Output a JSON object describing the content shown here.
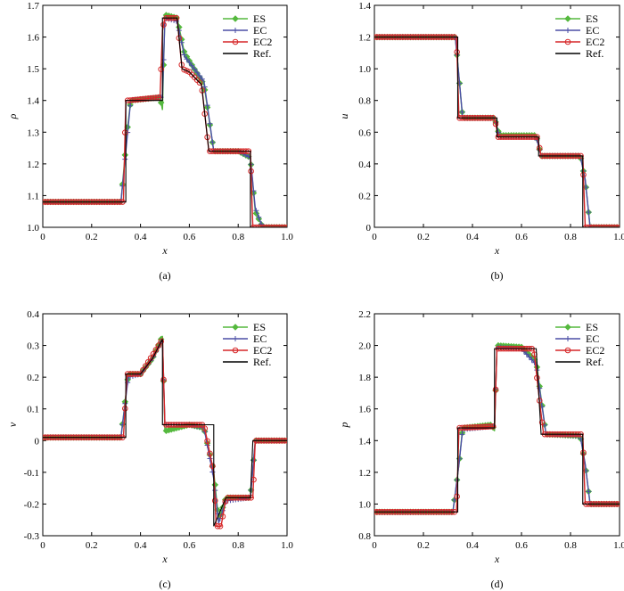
{
  "figure": {
    "legend": [
      {
        "label": "ES",
        "color": "#55b93e",
        "marker": "diamond"
      },
      {
        "label": "EC",
        "color": "#4b4fa6",
        "marker": "plus"
      },
      {
        "label": "EC2",
        "color": "#d62728",
        "marker": "circle"
      },
      {
        "label": "Ref.",
        "color": "#000000",
        "marker": "none"
      }
    ]
  },
  "chart_data": [
    {
      "type": "line",
      "caption": "(a)",
      "xlabel": "x",
      "ylabel": "ρ",
      "xlim": [
        0,
        1.0
      ],
      "ylim": [
        1.0,
        1.7
      ],
      "xticks": [
        "0",
        "0.2",
        "0.4",
        "0.6",
        "0.8",
        "1.0"
      ],
      "yticks": [
        "1.0",
        "1.1",
        "1.2",
        "1.3",
        "1.4",
        "1.5",
        "1.6",
        "1.7"
      ],
      "series": [
        {
          "name": "ES",
          "x": [
            0,
            0.32,
            0.345,
            0.36,
            0.48,
            0.49,
            0.5,
            0.55,
            0.58,
            0.62,
            0.66,
            0.7,
            0.8,
            0.85,
            0.87,
            0.9,
            1.0
          ],
          "y": [
            1.08,
            1.08,
            1.3,
            1.4,
            1.41,
            1.37,
            1.67,
            1.66,
            1.55,
            1.5,
            1.45,
            1.24,
            1.24,
            1.22,
            1.05,
            1.0,
            1.0
          ]
        },
        {
          "name": "EC",
          "x": [
            0,
            0.32,
            0.345,
            0.36,
            0.48,
            0.49,
            0.5,
            0.55,
            0.58,
            0.62,
            0.66,
            0.7,
            0.8,
            0.85,
            0.87,
            0.9,
            1.0
          ],
          "y": [
            1.08,
            1.08,
            1.28,
            1.4,
            1.41,
            1.41,
            1.66,
            1.65,
            1.54,
            1.5,
            1.46,
            1.24,
            1.24,
            1.22,
            1.06,
            1.0,
            1.0
          ]
        },
        {
          "name": "EC2",
          "x": [
            0,
            0.33,
            0.34,
            0.35,
            0.48,
            0.49,
            0.5,
            0.55,
            0.57,
            0.6,
            0.65,
            0.68,
            0.85,
            0.86,
            0.9,
            1.0
          ],
          "y": [
            1.08,
            1.08,
            1.4,
            1.4,
            1.41,
            1.62,
            1.66,
            1.66,
            1.5,
            1.49,
            1.45,
            1.24,
            1.24,
            1.0,
            1.0,
            1.0
          ]
        },
        {
          "name": "Ref.",
          "x": [
            0,
            0.34,
            0.34,
            0.49,
            0.49,
            0.55,
            0.57,
            0.6,
            0.65,
            0.68,
            0.85,
            0.85,
            1.0
          ],
          "y": [
            1.08,
            1.08,
            1.4,
            1.4,
            1.66,
            1.66,
            1.5,
            1.49,
            1.45,
            1.24,
            1.24,
            1.0,
            1.0
          ]
        }
      ]
    },
    {
      "type": "line",
      "caption": "(b)",
      "xlabel": "x",
      "ylabel": "u",
      "xlim": [
        0,
        1.0
      ],
      "ylim": [
        0,
        1.4
      ],
      "xticks": [
        "0",
        "0.2",
        "0.4",
        "0.6",
        "0.8",
        "1.0"
      ],
      "yticks": [
        "0",
        "0.2",
        "0.4",
        "0.6",
        "0.8",
        "1.0",
        "1.2",
        "1.4"
      ],
      "series": [
        {
          "name": "ES",
          "x": [
            0,
            0.33,
            0.345,
            0.36,
            0.49,
            0.51,
            0.66,
            0.68,
            0.84,
            0.86,
            0.88,
            1.0
          ],
          "y": [
            1.2,
            1.2,
            0.95,
            0.69,
            0.69,
            0.58,
            0.58,
            0.45,
            0.45,
            0.3,
            0.0,
            0.0
          ]
        },
        {
          "name": "EC",
          "x": [
            0,
            0.33,
            0.345,
            0.36,
            0.49,
            0.51,
            0.66,
            0.68,
            0.84,
            0.86,
            0.88,
            1.0
          ],
          "y": [
            1.2,
            1.2,
            0.95,
            0.69,
            0.69,
            0.57,
            0.57,
            0.45,
            0.45,
            0.3,
            0.0,
            0.0
          ]
        },
        {
          "name": "EC2",
          "x": [
            0,
            0.335,
            0.345,
            0.49,
            0.505,
            0.665,
            0.68,
            0.85,
            0.86,
            1.0
          ],
          "y": [
            1.2,
            1.2,
            0.69,
            0.69,
            0.57,
            0.57,
            0.45,
            0.45,
            0.0,
            0.0
          ]
        },
        {
          "name": "Ref.",
          "x": [
            0,
            0.34,
            0.34,
            0.5,
            0.5,
            0.67,
            0.67,
            0.85,
            0.85,
            1.0
          ],
          "y": [
            1.2,
            1.2,
            0.69,
            0.69,
            0.57,
            0.57,
            0.45,
            0.45,
            0.0,
            0.0
          ]
        }
      ]
    },
    {
      "type": "line",
      "caption": "(c)",
      "xlabel": "x",
      "ylabel": "v",
      "xlim": [
        0,
        1.0
      ],
      "ylim": [
        -0.3,
        0.4
      ],
      "xticks": [
        "0",
        "0.2",
        "0.4",
        "0.6",
        "0.8",
        "1.0"
      ],
      "yticks": [
        "-0.3",
        "-0.2",
        "-0.1",
        "0",
        "0.1",
        "0.2",
        "0.3",
        "0.4"
      ],
      "series": [
        {
          "name": "ES",
          "x": [
            0,
            0.32,
            0.35,
            0.4,
            0.45,
            0.49,
            0.5,
            0.6,
            0.66,
            0.7,
            0.72,
            0.75,
            0.85,
            0.87,
            1.0
          ],
          "y": [
            0.01,
            0.01,
            0.21,
            0.21,
            0.26,
            0.33,
            0.03,
            0.05,
            0.04,
            -0.1,
            -0.25,
            -0.18,
            -0.18,
            0.0,
            0.0
          ]
        },
        {
          "name": "EC",
          "x": [
            0,
            0.32,
            0.35,
            0.4,
            0.45,
            0.49,
            0.5,
            0.6,
            0.66,
            0.7,
            0.72,
            0.75,
            0.85,
            0.87,
            1.0
          ],
          "y": [
            0.01,
            0.01,
            0.2,
            0.21,
            0.26,
            0.32,
            0.05,
            0.05,
            0.04,
            -0.12,
            -0.26,
            -0.19,
            -0.18,
            0.0,
            0.0
          ]
        },
        {
          "name": "EC2",
          "x": [
            0,
            0.33,
            0.345,
            0.4,
            0.45,
            0.49,
            0.5,
            0.66,
            0.7,
            0.71,
            0.73,
            0.75,
            0.86,
            0.87,
            1.0
          ],
          "y": [
            0.01,
            0.01,
            0.21,
            0.21,
            0.27,
            0.32,
            0.05,
            0.05,
            -0.1,
            -0.27,
            -0.27,
            -0.18,
            -0.18,
            0.0,
            0.0
          ]
        },
        {
          "name": "Ref.",
          "x": [
            0,
            0.34,
            0.34,
            0.4,
            0.45,
            0.49,
            0.49,
            0.66,
            0.7,
            0.7,
            0.75,
            0.85,
            0.86,
            1.0
          ],
          "y": [
            0.01,
            0.01,
            0.21,
            0.21,
            0.26,
            0.32,
            0.05,
            0.05,
            0.05,
            -0.27,
            -0.18,
            -0.18,
            0.0,
            0.0
          ]
        }
      ]
    },
    {
      "type": "line",
      "caption": "(d)",
      "xlabel": "x",
      "ylabel": "p",
      "xlim": [
        0,
        1.0
      ],
      "ylim": [
        0.8,
        2.2
      ],
      "xticks": [
        "0",
        "0.2",
        "0.4",
        "0.6",
        "0.8",
        "1.0"
      ],
      "yticks": [
        "0.8",
        "1.0",
        "1.2",
        "1.4",
        "1.6",
        "1.8",
        "2.0",
        "2.2"
      ],
      "series": [
        {
          "name": "ES",
          "x": [
            0,
            0.32,
            0.345,
            0.36,
            0.48,
            0.49,
            0.5,
            0.6,
            0.66,
            0.7,
            0.84,
            0.86,
            0.88,
            1.0
          ],
          "y": [
            0.95,
            0.95,
            1.25,
            1.48,
            1.5,
            1.46,
            2.0,
            1.99,
            1.9,
            1.44,
            1.43,
            1.25,
            1.0,
            1.0
          ]
        },
        {
          "name": "EC",
          "x": [
            0,
            0.32,
            0.345,
            0.36,
            0.48,
            0.49,
            0.5,
            0.6,
            0.66,
            0.7,
            0.84,
            0.86,
            0.88,
            1.0
          ],
          "y": [
            0.95,
            0.95,
            1.25,
            1.47,
            1.49,
            1.49,
            1.99,
            1.98,
            1.88,
            1.44,
            1.43,
            1.25,
            1.0,
            1.0
          ]
        },
        {
          "name": "EC2",
          "x": [
            0,
            0.335,
            0.345,
            0.49,
            0.5,
            0.65,
            0.67,
            0.69,
            0.85,
            0.86,
            1.0
          ],
          "y": [
            0.95,
            0.95,
            1.48,
            1.49,
            1.98,
            1.98,
            1.7,
            1.44,
            1.44,
            1.0,
            1.0
          ]
        },
        {
          "name": "Ref.",
          "x": [
            0,
            0.34,
            0.34,
            0.49,
            0.49,
            0.66,
            0.68,
            0.85,
            0.85,
            1.0
          ],
          "y": [
            0.95,
            0.95,
            1.48,
            1.48,
            1.98,
            1.98,
            1.44,
            1.44,
            1.0,
            1.0
          ]
        }
      ]
    }
  ]
}
